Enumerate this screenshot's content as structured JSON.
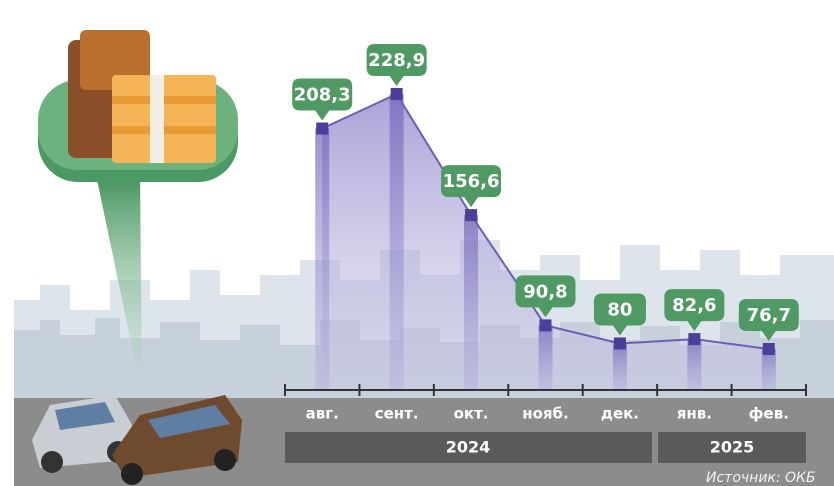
{
  "chart_data": {
    "type": "line",
    "categories": [
      "авг.",
      "сент.",
      "окт.",
      "нояб.",
      "дек.",
      "янв.",
      "фев."
    ],
    "values": [
      208.3,
      228.9,
      156.6,
      90.8,
      80,
      82.6,
      76.7
    ],
    "value_labels": [
      "208,3",
      "228,9",
      "156,6",
      "90,8",
      "80",
      "82,6",
      "76,7"
    ],
    "color": "#4b3f9c",
    "years": [
      "2024",
      "2025"
    ],
    "source": "Источник: ОКБ"
  }
}
